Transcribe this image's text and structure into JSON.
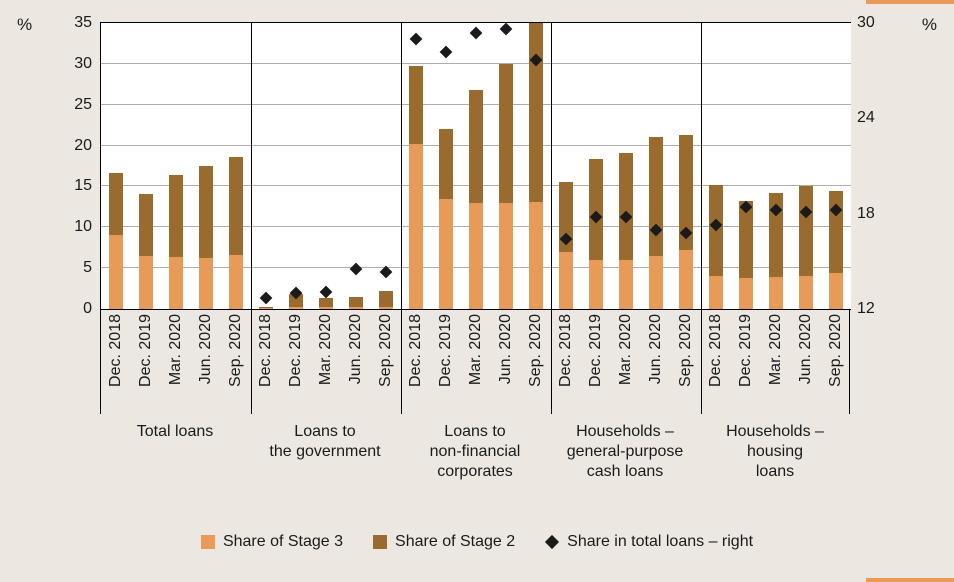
{
  "chart_data": {
    "type": "bar",
    "stacked": true,
    "left_axis": {
      "unit": "%",
      "min": 0,
      "max": 35,
      "ticks": [
        0,
        5,
        10,
        15,
        20,
        25,
        30,
        35
      ]
    },
    "right_axis": {
      "unit": "%",
      "min": 12,
      "max": 30,
      "ticks": [
        12,
        18,
        24,
        30
      ]
    },
    "periods": [
      "Dec. 2018",
      "Dec. 2019",
      "Mar. 2020",
      "Jun. 2020",
      "Sep. 2020"
    ],
    "groups": [
      {
        "label": "Total loans",
        "label_lines": [
          "Total loans"
        ],
        "share_of_stage3": [
          9.0,
          6.5,
          6.4,
          6.3,
          6.6
        ],
        "share_of_stage2": [
          7.6,
          7.6,
          10.0,
          11.2,
          12.0
        ],
        "share_in_total_loans_right": [
          null,
          null,
          null,
          null,
          null
        ]
      },
      {
        "label": "Loans to the government",
        "label_lines": [
          "Loans to",
          "the government"
        ],
        "share_of_stage3": [
          0.1,
          0.3,
          0.2,
          0.2,
          0.3
        ],
        "share_of_stage2": [
          0.2,
          1.5,
          1.1,
          1.3,
          1.9
        ],
        "share_in_total_loans_right": [
          12.7,
          13.0,
          13.1,
          14.5,
          14.3
        ]
      },
      {
        "label": "Loans to non-financial corporates",
        "label_lines": [
          "Loans to",
          "non-financial",
          "corporates"
        ],
        "share_of_stage3": [
          20.2,
          13.5,
          13.0,
          13.0,
          13.1
        ],
        "share_of_stage2": [
          9.5,
          8.5,
          13.8,
          17.0,
          21.9
        ],
        "share_in_total_loans_right": [
          29.0,
          28.2,
          29.4,
          29.6,
          27.7
        ]
      },
      {
        "label": "Households – general-purpose cash loans",
        "label_lines": [
          "Households –",
          "general-purpose",
          "cash loans"
        ],
        "share_of_stage3": [
          7.0,
          6.0,
          6.0,
          6.5,
          7.2
        ],
        "share_of_stage2": [
          8.6,
          12.3,
          13.1,
          14.5,
          14.1
        ],
        "share_in_total_loans_right": [
          16.4,
          17.8,
          17.8,
          17.0,
          16.8
        ]
      },
      {
        "label": "Households – housing loans",
        "label_lines": [
          "Households –",
          "housing",
          "loans"
        ],
        "share_of_stage3": [
          4.1,
          3.8,
          3.9,
          4.0,
          4.4
        ],
        "share_of_stage2": [
          11.1,
          9.4,
          10.3,
          11.0,
          10.1
        ],
        "share_in_total_loans_right": [
          17.3,
          18.4,
          18.2,
          18.1,
          18.2
        ]
      }
    ],
    "legend": [
      {
        "label": "Share of Stage 3",
        "swatch": "square",
        "color": "#e89b59"
      },
      {
        "label": "Share of Stage 2",
        "swatch": "square",
        "color": "#9a6b2f"
      },
      {
        "label": "Share in total loans – right",
        "swatch": "diamond",
        "color": "#1a1a1a"
      }
    ],
    "colors": {
      "stage3": "#e89b59",
      "stage2": "#9a6b2f",
      "marker": "#1a1a1a",
      "background": "#ece8e1",
      "plot_background": "#ffffff",
      "gridline": "#b0ada8",
      "axis_line": "#000000",
      "accent_strip": "#e89b59"
    }
  }
}
